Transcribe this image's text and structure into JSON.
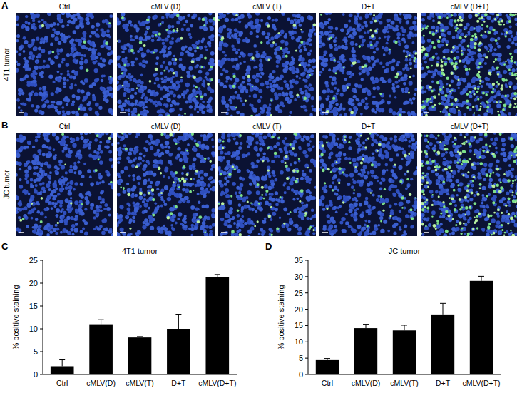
{
  "image_panels": [
    {
      "label": "A",
      "row_label": "4T1 tumor",
      "columns": [
        "Ctrl",
        "cMLV (D)",
        "cMLV (T)",
        "D+T",
        "cMLV (D+T)"
      ]
    },
    {
      "label": "B",
      "row_label": "JC tumor",
      "columns": [
        "Ctrl",
        "cMLV (D)",
        "cMLV (T)",
        "D+T",
        "cMLV (D+T)"
      ]
    }
  ],
  "chart_data": [
    {
      "type": "bar",
      "panel_label": "C",
      "title": "4T1 tumor",
      "y_label": "% positive staining",
      "categories": [
        "Ctrl",
        "cMLV(D)",
        "cMLV(T)",
        "D+T",
        "cMLV(D+T)"
      ],
      "values": [
        1.8,
        11.0,
        8.1,
        10.0,
        21.3
      ],
      "errors": [
        1.4,
        1.0,
        0.2,
        3.2,
        0.6
      ],
      "color": "#000000",
      "ylim": [
        0,
        25
      ],
      "yticks": [
        0,
        5,
        10,
        15,
        20,
        25
      ]
    },
    {
      "type": "bar",
      "panel_label": "D",
      "title": "JC tumor",
      "y_label": "% positive staining",
      "categories": [
        "Ctrl",
        "cMLV(D)",
        "cMLV(T)",
        "D+T",
        "cMLV(D+T)"
      ],
      "values": [
        4.4,
        14.2,
        13.5,
        18.4,
        28.7
      ],
      "errors": [
        0.5,
        1.2,
        1.6,
        3.4,
        1.4
      ],
      "color": "#000000",
      "ylim": [
        0,
        35
      ],
      "yticks": [
        0,
        5,
        10,
        15,
        20,
        25,
        30,
        35
      ]
    }
  ]
}
